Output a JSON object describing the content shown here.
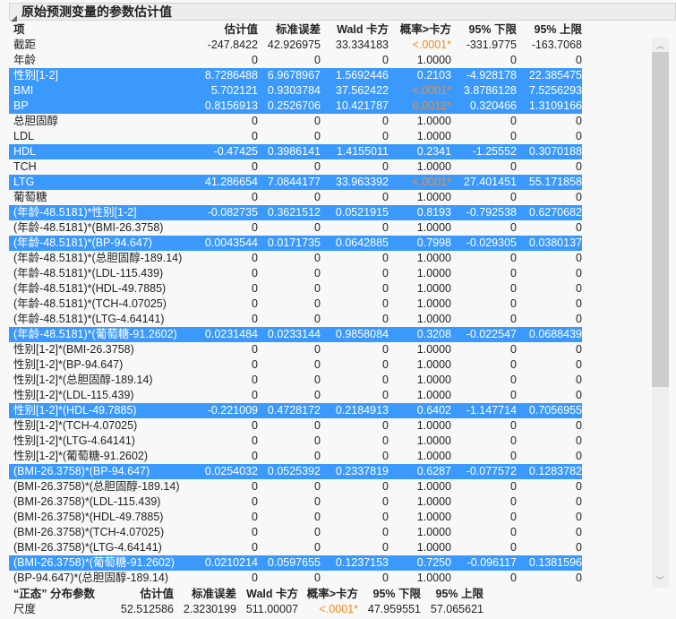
{
  "title": "原始预测变量的参数估计值",
  "colors": {
    "selected_row": "#3b99fc",
    "significant": "#f08c1c"
  },
  "headers": [
    "项",
    "估计值",
    "标准误差",
    "Wald 卡方",
    "概率>卡方",
    "95% 下限",
    "95% 上限"
  ],
  "rows": [
    {
      "cells": [
        "截距",
        "-247.8422",
        "42.926975",
        "33.334183",
        "<.0001*",
        "-331.9775",
        "-163.7068"
      ],
      "selected": false,
      "sig": true
    },
    {
      "cells": [
        "年龄",
        "0",
        "0",
        "0",
        "1.0000",
        "0",
        "0"
      ],
      "selected": false,
      "sig": false
    },
    {
      "cells": [
        "性别[1-2]",
        "8.7286488",
        "6.9678967",
        "1.5692446",
        "0.2103",
        "-4.928178",
        "22.385475"
      ],
      "selected": true,
      "sig": false
    },
    {
      "cells": [
        "BMI",
        "5.702121",
        "0.9303784",
        "37.562422",
        "<.0001*",
        "3.8786128",
        "7.5256293"
      ],
      "selected": true,
      "sig": true
    },
    {
      "cells": [
        "BP",
        "0.8156913",
        "0.2526706",
        "10.421787",
        "0.0012*",
        "0.320466",
        "1.3109166"
      ],
      "selected": true,
      "sig": true
    },
    {
      "cells": [
        "总胆固醇",
        "0",
        "0",
        "0",
        "1.0000",
        "0",
        "0"
      ],
      "selected": false,
      "sig": false
    },
    {
      "cells": [
        "LDL",
        "0",
        "0",
        "0",
        "1.0000",
        "0",
        "0"
      ],
      "selected": false,
      "sig": false
    },
    {
      "cells": [
        "HDL",
        "-0.47425",
        "0.3986141",
        "1.4155011",
        "0.2341",
        "-1.25552",
        "0.3070188"
      ],
      "selected": true,
      "sig": false
    },
    {
      "cells": [
        "TCH",
        "0",
        "0",
        "0",
        "1.0000",
        "0",
        "0"
      ],
      "selected": false,
      "sig": false
    },
    {
      "cells": [
        "LTG",
        "41.286654",
        "7.0844177",
        "33.963392",
        "<.0001*",
        "27.401451",
        "55.171858"
      ],
      "selected": true,
      "sig": true
    },
    {
      "cells": [
        "葡萄糖",
        "0",
        "0",
        "0",
        "1.0000",
        "0",
        "0"
      ],
      "selected": false,
      "sig": false
    },
    {
      "cells": [
        "(年龄-48.5181)*性别[1-2]",
        "-0.082735",
        "0.3621512",
        "0.0521915",
        "0.8193",
        "-0.792538",
        "0.6270682"
      ],
      "selected": true,
      "sig": false
    },
    {
      "cells": [
        "(年龄-48.5181)*(BMI-26.3758)",
        "0",
        "0",
        "0",
        "1.0000",
        "0",
        "0"
      ],
      "selected": false,
      "sig": false
    },
    {
      "cells": [
        "(年龄-48.5181)*(BP-94.647)",
        "0.0043544",
        "0.0171735",
        "0.0642885",
        "0.7998",
        "-0.029305",
        "0.0380137"
      ],
      "selected": true,
      "sig": false
    },
    {
      "cells": [
        "(年龄-48.5181)*(总胆固醇-189.14)",
        "0",
        "0",
        "0",
        "1.0000",
        "0",
        "0"
      ],
      "selected": false,
      "sig": false
    },
    {
      "cells": [
        "(年龄-48.5181)*(LDL-115.439)",
        "0",
        "0",
        "0",
        "1.0000",
        "0",
        "0"
      ],
      "selected": false,
      "sig": false
    },
    {
      "cells": [
        "(年龄-48.5181)*(HDL-49.7885)",
        "0",
        "0",
        "0",
        "1.0000",
        "0",
        "0"
      ],
      "selected": false,
      "sig": false
    },
    {
      "cells": [
        "(年龄-48.5181)*(TCH-4.07025)",
        "0",
        "0",
        "0",
        "1.0000",
        "0",
        "0"
      ],
      "selected": false,
      "sig": false
    },
    {
      "cells": [
        "(年龄-48.5181)*(LTG-4.64141)",
        "0",
        "0",
        "0",
        "1.0000",
        "0",
        "0"
      ],
      "selected": false,
      "sig": false
    },
    {
      "cells": [
        "(年龄-48.5181)*(葡萄糖-91.2602)",
        "0.0231484",
        "0.0233144",
        "0.9858084",
        "0.3208",
        "-0.022547",
        "0.0688439"
      ],
      "selected": true,
      "sig": false
    },
    {
      "cells": [
        "性别[1-2]*(BMI-26.3758)",
        "0",
        "0",
        "0",
        "1.0000",
        "0",
        "0"
      ],
      "selected": false,
      "sig": false
    },
    {
      "cells": [
        "性别[1-2]*(BP-94.647)",
        "0",
        "0",
        "0",
        "1.0000",
        "0",
        "0"
      ],
      "selected": false,
      "sig": false
    },
    {
      "cells": [
        "性别[1-2]*(总胆固醇-189.14)",
        "0",
        "0",
        "0",
        "1.0000",
        "0",
        "0"
      ],
      "selected": false,
      "sig": false
    },
    {
      "cells": [
        "性别[1-2]*(LDL-115.439)",
        "0",
        "0",
        "0",
        "1.0000",
        "0",
        "0"
      ],
      "selected": false,
      "sig": false
    },
    {
      "cells": [
        "性别[1-2]*(HDL-49.7885)",
        "-0.221009",
        "0.4728172",
        "0.2184913",
        "0.6402",
        "-1.147714",
        "0.7056955"
      ],
      "selected": true,
      "sig": false
    },
    {
      "cells": [
        "性别[1-2]*(TCH-4.07025)",
        "0",
        "0",
        "0",
        "1.0000",
        "0",
        "0"
      ],
      "selected": false,
      "sig": false
    },
    {
      "cells": [
        "性别[1-2]*(LTG-4.64141)",
        "0",
        "0",
        "0",
        "1.0000",
        "0",
        "0"
      ],
      "selected": false,
      "sig": false
    },
    {
      "cells": [
        "性别[1-2]*(葡萄糖-91.2602)",
        "0",
        "0",
        "0",
        "1.0000",
        "0",
        "0"
      ],
      "selected": false,
      "sig": false
    },
    {
      "cells": [
        "(BMI-26.3758)*(BP-94.647)",
        "0.0254032",
        "0.0525392",
        "0.2337819",
        "0.6287",
        "-0.077572",
        "0.1283782"
      ],
      "selected": true,
      "sig": false
    },
    {
      "cells": [
        "(BMI-26.3758)*(总胆固醇-189.14)",
        "0",
        "0",
        "0",
        "1.0000",
        "0",
        "0"
      ],
      "selected": false,
      "sig": false
    },
    {
      "cells": [
        "(BMI-26.3758)*(LDL-115.439)",
        "0",
        "0",
        "0",
        "1.0000",
        "0",
        "0"
      ],
      "selected": false,
      "sig": false
    },
    {
      "cells": [
        "(BMI-26.3758)*(HDL-49.7885)",
        "0",
        "0",
        "0",
        "1.0000",
        "0",
        "0"
      ],
      "selected": false,
      "sig": false
    },
    {
      "cells": [
        "(BMI-26.3758)*(TCH-4.07025)",
        "0",
        "0",
        "0",
        "1.0000",
        "0",
        "0"
      ],
      "selected": false,
      "sig": false
    },
    {
      "cells": [
        "(BMI-26.3758)*(LTG-4.64141)",
        "0",
        "0",
        "0",
        "1.0000",
        "0",
        "0"
      ],
      "selected": false,
      "sig": false
    },
    {
      "cells": [
        "(BMI-26.3758)*(葡萄糖-91.2602)",
        "0.0210214",
        "0.0597655",
        "0.1237153",
        "0.7250",
        "-0.096117",
        "0.1381596"
      ],
      "selected": true,
      "sig": false
    },
    {
      "cells": [
        "(BP-94.647)*(总胆固醇-189.14)",
        "0",
        "0",
        "0",
        "1.0000",
        "0",
        "0"
      ],
      "selected": false,
      "sig": false
    }
  ],
  "dist": {
    "headers": [
      "“正态” 分布参数",
      "估计值",
      "标准误差",
      "Wald 卡方",
      "概率>卡方",
      "95% 下限",
      "95% 上限"
    ],
    "row": {
      "cells": [
        "尺度",
        "52.512586",
        "2.3230199",
        "511.00007",
        "<.0001*",
        "47.959551",
        "57.065621"
      ],
      "sig": true
    }
  }
}
